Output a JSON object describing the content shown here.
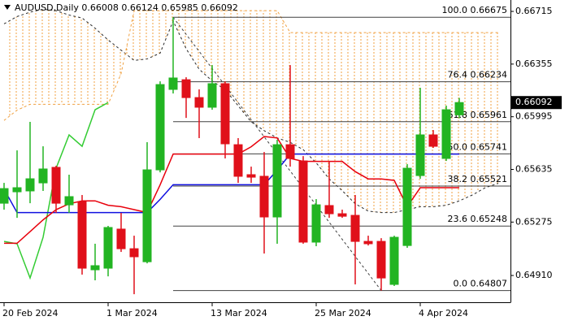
{
  "chart_data": {
    "type": "candlestick",
    "title": "AUDUSD,Daily  0.66008 0.66124 0.65985 0.66092",
    "categories": [
      "20 Feb 2024",
      null,
      null,
      null,
      null,
      null,
      null,
      null,
      "1 Mar 2024",
      null,
      null,
      null,
      null,
      null,
      null,
      null,
      "13 Mar 2024",
      null,
      null,
      null,
      null,
      null,
      null,
      null,
      "25 Mar 2024",
      null,
      null,
      null,
      null,
      null,
      null,
      null,
      "4 Apr 2024",
      null,
      null,
      null,
      null,
      null,
      null
    ],
    "open": [
      0.65404,
      0.65482,
      0.65488,
      0.65543,
      0.65649,
      0.65393,
      0.65415,
      0.64949,
      0.6496,
      0.65227,
      0.65093,
      0.65004,
      0.65632,
      0.66182,
      0.66248,
      0.66126,
      0.6606,
      0.66221,
      0.65804,
      0.65599,
      0.65588,
      0.6531,
      0.65804,
      0.65693,
      0.65138,
      0.65388,
      0.65332,
      0.65321,
      0.65143,
      0.65143,
      0.64849,
      0.65115,
      0.65593,
      0.65871,
      0.6571,
      0.66008,
      null,
      null,
      null
    ],
    "high": [
      0.65543,
      0.65765,
      0.6596,
      0.65793,
      0.6566,
      0.65599,
      0.6546,
      0.65127,
      0.65249,
      0.65338,
      0.65182,
      0.65821,
      0.66237,
      0.66675,
      0.66265,
      0.66182,
      0.66348,
      0.66237,
      0.65849,
      0.65654,
      0.65754,
      0.65838,
      0.66348,
      0.65726,
      0.65432,
      0.65693,
      0.6536,
      0.6546,
      0.65182,
      0.65165,
      0.65182,
      0.65671,
      0.66193,
      0.65904,
      0.66071,
      0.66124,
      null,
      null,
      null
    ],
    "low": [
      0.6536,
      0.65304,
      0.65404,
      0.65488,
      0.65338,
      0.65338,
      0.64916,
      0.64877,
      0.64904,
      0.65071,
      0.64782,
      0.64993,
      0.65615,
      0.66154,
      0.65987,
      0.65849,
      0.66043,
      0.6571,
      0.65543,
      0.65543,
      0.6506,
      0.65127,
      0.65654,
      0.65127,
      0.6511,
      0.65304,
      0.65304,
      0.64849,
      0.65115,
      0.64807,
      0.64838,
      0.65099,
      0.65571,
      0.65782,
      0.65693,
      0.65985,
      null,
      null,
      null
    ],
    "close": [
      0.65504,
      0.6551,
      0.65571,
      0.65638,
      0.65404,
      0.65449,
      0.6496,
      0.64977,
      0.65238,
      0.65093,
      0.65038,
      0.65632,
      0.66215,
      0.6626,
      0.66126,
      0.6606,
      0.66221,
      0.6581,
      0.65588,
      0.65582,
      0.6531,
      0.65804,
      0.6571,
      0.65138,
      0.65393,
      0.65332,
      0.65315,
      0.65143,
      0.65127,
      0.64893,
      0.65171,
      0.65643,
      0.65871,
      0.65793,
      0.66043,
      0.66092,
      null,
      null,
      null
    ],
    "up_color": "#22b422",
    "down_color": "#e0101a",
    "cloud_color": "#f0a040",
    "lines": [
      {
        "color": "#2a2a2a",
        "dash": true,
        "values": [
          0.6663,
          0.6668,
          0.6671,
          0.6673,
          0.6672,
          0.6669,
          0.6667,
          0.666,
          0.6652,
          0.6645,
          0.6638,
          0.6639,
          0.6643,
          0.6665,
          0.6646,
          0.6632,
          0.6624,
          0.6618,
          0.6607,
          0.6596,
          0.659,
          0.6585,
          0.6582,
          0.6577,
          0.6568,
          0.6557,
          0.6549,
          0.654,
          0.6535,
          0.6534,
          0.6534,
          0.6536,
          0.6538,
          0.6538,
          0.6539,
          0.6542,
          0.6546,
          0.6551,
          0.6554
        ]
      },
      {
        "color": "#f0a040",
        "dash": true,
        "values": [
          0.6597,
          0.6604,
          0.6608,
          0.6608,
          0.6608,
          0.6608,
          0.6608,
          0.6608,
          0.6608,
          0.6629,
          0.6672,
          0.6672,
          0.6672,
          0.6672,
          0.6672,
          0.6672,
          0.6672,
          0.6672,
          0.6672,
          0.6672,
          0.6672,
          0.6672,
          0.6657,
          0.6657,
          0.6657,
          0.6657,
          0.6657,
          0.6657,
          0.6657,
          0.6657,
          0.6657,
          0.6657,
          0.6657,
          0.6657,
          0.6657,
          0.6657,
          0.6657,
          0.6657,
          0.6657
        ]
      },
      {
        "color": "#33cc33",
        "dash": false,
        "values": [
          0.65143,
          0.65127,
          0.64893,
          0.65171,
          0.65643,
          0.65871,
          0.65793,
          0.66043,
          0.66092,
          null,
          null,
          null,
          null,
          null,
          null,
          null,
          null,
          null,
          null,
          null,
          null,
          null,
          null,
          null,
          null,
          null,
          null,
          null,
          null,
          null,
          null,
          null,
          null,
          null,
          null,
          null,
          null,
          null,
          null
        ]
      },
      {
        "color": "#1010e0",
        "dash": false,
        "values": [
          0.655,
          0.6534,
          0.6534,
          0.6534,
          0.6534,
          0.6534,
          0.6534,
          0.6534,
          0.6534,
          0.6534,
          0.6534,
          0.6534,
          0.6543,
          0.6553,
          0.6553,
          0.6553,
          0.6553,
          0.6553,
          0.6553,
          0.6553,
          0.6553,
          0.6563,
          0.6574,
          0.6574,
          0.6574,
          0.6574,
          0.6574,
          0.6574,
          0.6574,
          0.6574,
          0.6574,
          0.6574,
          0.6574,
          0.6574,
          0.6574,
          0.6574,
          null,
          null,
          null
        ]
      },
      {
        "color": "#e8000b",
        "dash": false,
        "values": [
          0.6513,
          0.6513,
          0.6521,
          0.6529,
          0.6536,
          0.654,
          0.6542,
          0.6542,
          0.6539,
          0.6538,
          0.6536,
          0.6534,
          0.6553,
          0.6574,
          0.6574,
          0.6574,
          0.6574,
          0.6574,
          0.6574,
          0.6579,
          0.6586,
          0.6585,
          0.6571,
          0.6569,
          0.6569,
          0.6569,
          0.6569,
          0.6562,
          0.6557,
          0.6557,
          0.6556,
          0.6538,
          0.6551,
          0.6551,
          0.6551,
          0.6551,
          null,
          null,
          null
        ]
      }
    ],
    "fib_color": "#404040",
    "fib_levels": [
      {
        "value": 0.66675,
        "label": "100.0 0.66675"
      },
      {
        "value": 0.66234,
        "label": "76.4 0.66234"
      },
      {
        "value": 0.65961,
        "label": "61.8 0.65961"
      },
      {
        "value": 0.65741,
        "label": "50.0 0.65741"
      },
      {
        "value": 0.65521,
        "label": "38.2 0.65521"
      },
      {
        "value": 0.65248,
        "label": "23.6 0.65248"
      },
      {
        "value": 0.64807,
        "label": "0.0 0.64807"
      }
    ],
    "last_price": 0.66092,
    "ylim": [
      0.64727,
      0.66793
    ],
    "yticks": [
      0.66715,
      0.66355,
      0.65995,
      0.65635,
      0.65275,
      {
        "value": 0.6491,
        "label": "0.64910"
      }
    ]
  }
}
